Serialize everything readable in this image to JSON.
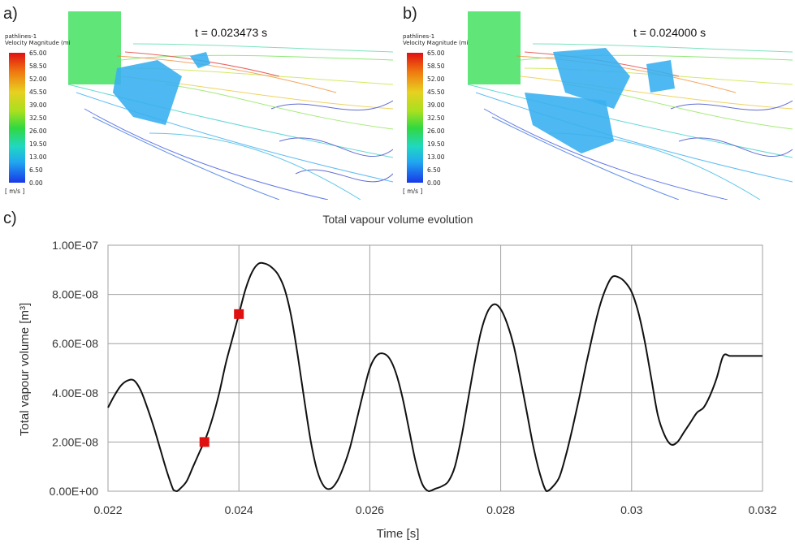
{
  "panels": [
    {
      "label": "a)",
      "time": "t = 0.023473 s",
      "legend": {
        "title_line1": "pathlines-1",
        "title_line2": "Velocity Magnitude (mi",
        "ticks": [
          "65.00",
          "58.50",
          "52.00",
          "45.50",
          "39.00",
          "32.50",
          "26.00",
          "19.50",
          "13.00",
          "6.50",
          "0.00"
        ],
        "unit": "[ m/s ]"
      }
    },
    {
      "label": "b)",
      "time": "t = 0.024000 s",
      "legend": {
        "title_line1": "pathlines-1",
        "title_line2": "Velocity Magnitude (mi",
        "ticks": [
          "65.00",
          "58.50",
          "52.00",
          "45.50",
          "39.00",
          "32.50",
          "26.00",
          "19.50",
          "13.00",
          "6.50",
          "0.00"
        ],
        "unit": "[ m/s ]"
      }
    }
  ],
  "chart_label": "c)",
  "chart_data": {
    "type": "line",
    "title": "Total vapour volume evolution",
    "xlabel": "Time [s]",
    "ylabel": "Total vapour volume [m³]",
    "xlim": [
      0.022,
      0.032
    ],
    "ylim": [
      0,
      1e-07
    ],
    "xticks": [
      "0.022",
      "0.024",
      "0.026",
      "0.028",
      "0.03",
      "0.032"
    ],
    "yticks": [
      "0.00E+00",
      "2.00E-08",
      "4.00E-08",
      "6.00E-08",
      "8.00E-08",
      "1.00E-07"
    ],
    "grid": true,
    "series": [
      {
        "color": "#111111",
        "x": [
          0.022,
          0.0221,
          0.0222,
          0.0223,
          0.0224,
          0.0225,
          0.0226,
          0.0227,
          0.0228,
          0.0229,
          0.023,
          0.02305,
          0.0231,
          0.0232,
          0.0233,
          0.0234,
          0.0235,
          0.0236,
          0.0237,
          0.0238,
          0.0239,
          0.024,
          0.0241,
          0.0242,
          0.0243,
          0.0244,
          0.0245,
          0.0246,
          0.0247,
          0.0248,
          0.0249,
          0.025,
          0.0251,
          0.0252,
          0.0253,
          0.0254,
          0.0255,
          0.0256,
          0.0257,
          0.0258,
          0.0259,
          0.026,
          0.0261,
          0.0262,
          0.0263,
          0.0264,
          0.0265,
          0.0266,
          0.0267,
          0.0268,
          0.0269,
          0.027,
          0.0271,
          0.0272,
          0.0273,
          0.0274,
          0.0275,
          0.0276,
          0.0277,
          0.0278,
          0.0279,
          0.028,
          0.0281,
          0.0282,
          0.0283,
          0.0284,
          0.0285,
          0.0286,
          0.0287,
          0.0288,
          0.0289,
          0.029,
          0.0291,
          0.0292,
          0.0293,
          0.0294,
          0.0295,
          0.0296,
          0.0297,
          0.0298,
          0.0299,
          0.03,
          0.0301,
          0.0302,
          0.0303,
          0.0304,
          0.0305,
          0.0306,
          0.0307,
          0.0308,
          0.0309,
          0.031,
          0.0311,
          0.0312,
          0.0313,
          0.0314,
          0.0315,
          0.0316,
          0.0317,
          0.0318,
          0.0319,
          0.032
        ],
        "y": [
          3.4e-08,
          3.9e-08,
          4.3e-08,
          4.5e-08,
          4.5e-08,
          4.1e-08,
          3.4e-08,
          2.6e-08,
          1.7e-08,
          8e-09,
          5e-10,
          0.0,
          1e-09,
          4e-09,
          1e-08,
          1.6e-08,
          2.2e-08,
          3e-08,
          4e-08,
          5.2e-08,
          6.2e-08,
          7.2e-08,
          8.2e-08,
          8.9e-08,
          9.25e-08,
          9.25e-08,
          9.1e-08,
          8.8e-08,
          8.2e-08,
          7.1e-08,
          5.5e-08,
          3.7e-08,
          2e-08,
          8e-09,
          2e-09,
          1e-09,
          4e-09,
          1e-08,
          1.8e-08,
          2.9e-08,
          4e-08,
          5e-08,
          5.5e-08,
          5.6e-08,
          5.4e-08,
          4.8e-08,
          3.8e-08,
          2.5e-08,
          1.2e-08,
          3e-09,
          0.0,
          1e-09,
          2e-09,
          4e-09,
          1e-08,
          2.2e-08,
          3.7e-08,
          5.2e-08,
          6.5e-08,
          7.3e-08,
          7.6e-08,
          7.4e-08,
          6.8e-08,
          5.9e-08,
          4.6e-08,
          3.2e-08,
          1.8e-08,
          7e-09,
          0.0,
          2e-09,
          6e-09,
          1.5e-08,
          2.6e-08,
          3.8e-08,
          5.1e-08,
          6.3e-08,
          7.4e-08,
          8.2e-08,
          8.7e-08,
          8.7e-08,
          8.5e-08,
          8.1e-08,
          7.3e-08,
          6.1e-08,
          4.6e-08,
          3.1e-08,
          2.3e-08,
          1.9e-08,
          2e-08,
          2.4e-08,
          2.8e-08,
          3.2e-08,
          3.4e-08,
          3.9e-08,
          4.6e-08,
          5.5e-08,
          5.5e-08,
          5.5e-08,
          5.5e-08,
          5.5e-08,
          5.5e-08,
          5.5e-08
        ]
      }
    ],
    "markers": [
      {
        "x": 0.023473,
        "y": 2e-08,
        "color": "#e01010"
      },
      {
        "x": 0.024,
        "y": 7.2e-08,
        "color": "#e01010"
      }
    ]
  }
}
